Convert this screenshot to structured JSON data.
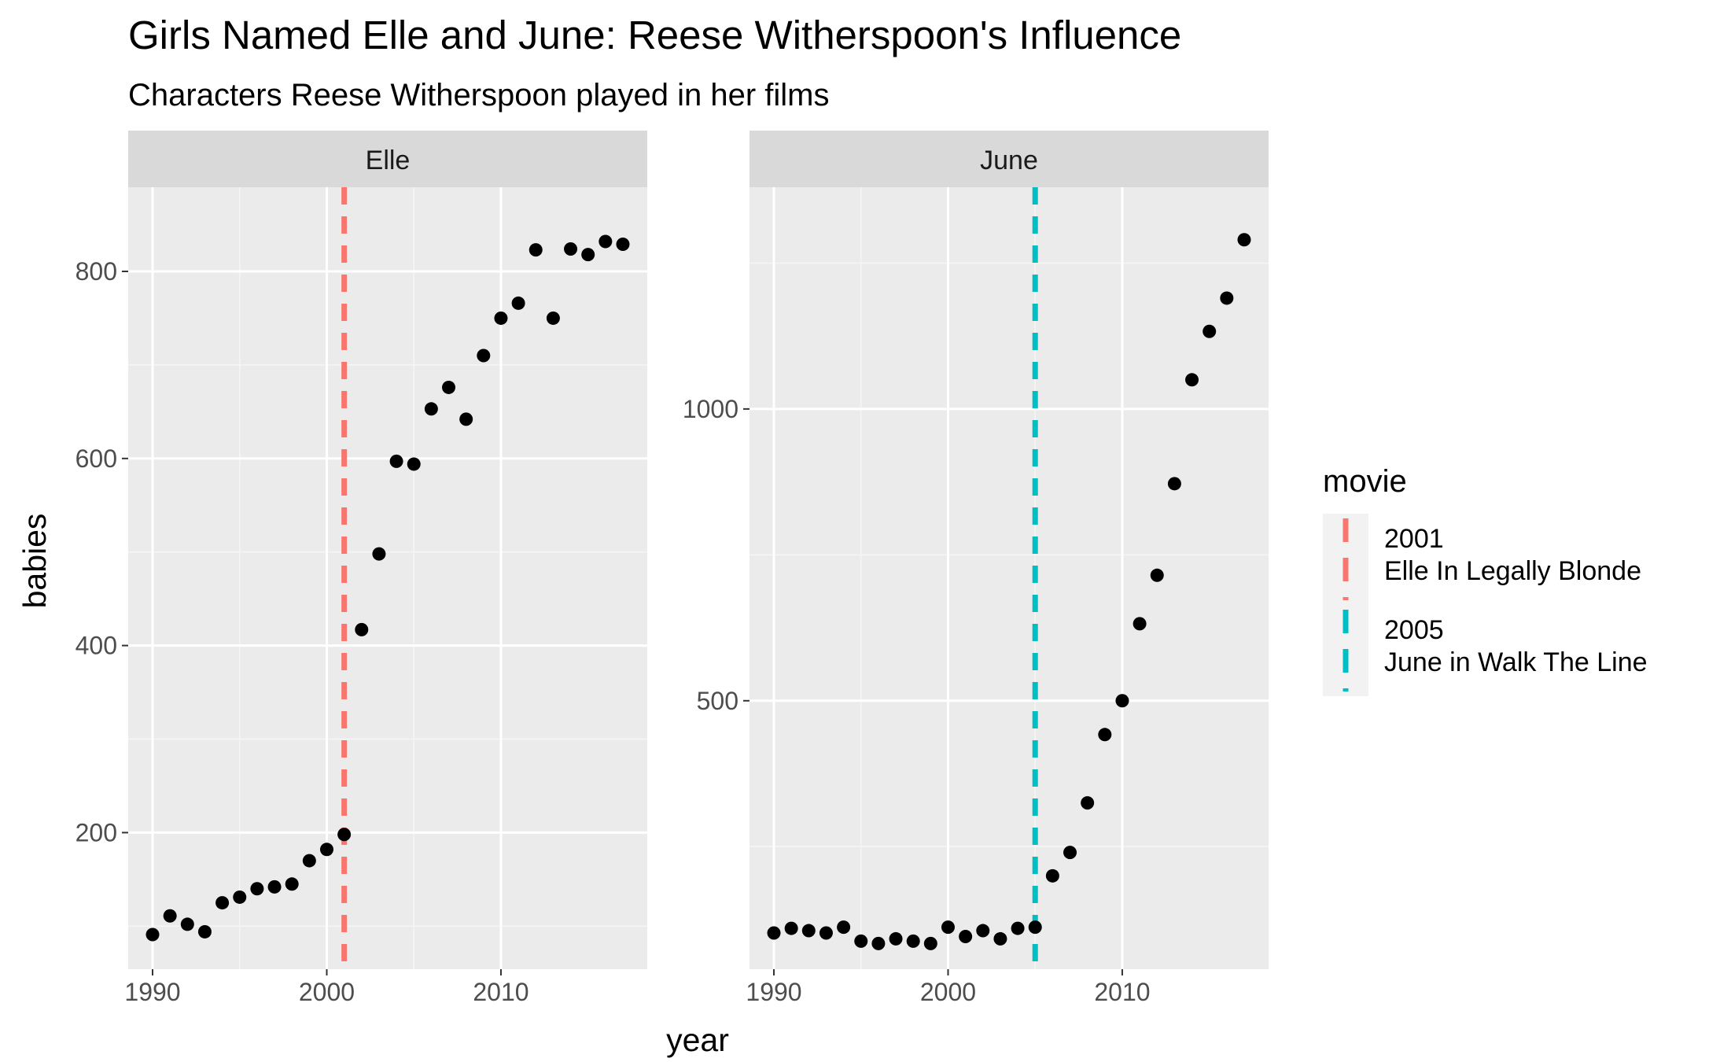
{
  "chart_data": {
    "type": "scatter",
    "title": "Girls Named Elle and June: Reese Witherspoon's Influence",
    "subtitle": "Characters Reese Witherspoon played in her films",
    "xlabel": "year",
    "ylabel": "babies",
    "grid": true,
    "legend": {
      "title": "movie",
      "placement": "right",
      "entries": [
        {
          "line1": "2001",
          "line2": " Elle In Legally Blonde",
          "color": "#F8766D"
        },
        {
          "line1": "2005",
          "line2": " June in Walk The Line",
          "color": "#00BFC4"
        }
      ]
    },
    "panels": [
      {
        "name": "Elle",
        "xlim": [
          1988.6,
          2018.4
        ],
        "ylim": [
          54,
          890
        ],
        "xticks": [
          1990,
          2000,
          2010
        ],
        "yticks": [
          200,
          400,
          600,
          800
        ],
        "vline": {
          "x": 2001,
          "color": "#F8766D"
        },
        "x": [
          1990,
          1991,
          1992,
          1993,
          1994,
          1995,
          1996,
          1997,
          1998,
          1999,
          2000,
          2001,
          2002,
          2003,
          2004,
          2005,
          2006,
          2007,
          2008,
          2009,
          2010,
          2011,
          2012,
          2013,
          2014,
          2015,
          2016,
          2017
        ],
        "y": [
          91,
          111,
          102,
          94,
          125,
          131,
          140,
          142,
          145,
          170,
          182,
          198,
          417,
          498,
          597,
          594,
          653,
          676,
          642,
          710,
          750,
          766,
          823,
          750,
          824,
          818,
          832,
          829
        ]
      },
      {
        "name": "June",
        "xlim": [
          1988.6,
          2018.4
        ],
        "ylim": [
          40,
          1380
        ],
        "xticks": [
          1990,
          2000,
          2010
        ],
        "yticks": [
          500,
          1000
        ],
        "vline": {
          "x": 2005,
          "color": "#00BFC4"
        },
        "x": [
          1990,
          1991,
          1992,
          1993,
          1994,
          1995,
          1996,
          1997,
          1998,
          1999,
          2000,
          2001,
          2002,
          2003,
          2004,
          2005,
          2006,
          2007,
          2008,
          2009,
          2010,
          2011,
          2012,
          2013,
          2014,
          2015,
          2016,
          2017
        ],
        "y": [
          102,
          110,
          106,
          102,
          112,
          88,
          84,
          92,
          88,
          84,
          112,
          96,
          106,
          92,
          110,
          112,
          200,
          240,
          325,
          442,
          500,
          632,
          715,
          872,
          1050,
          1133,
          1190,
          1290
        ]
      }
    ]
  }
}
